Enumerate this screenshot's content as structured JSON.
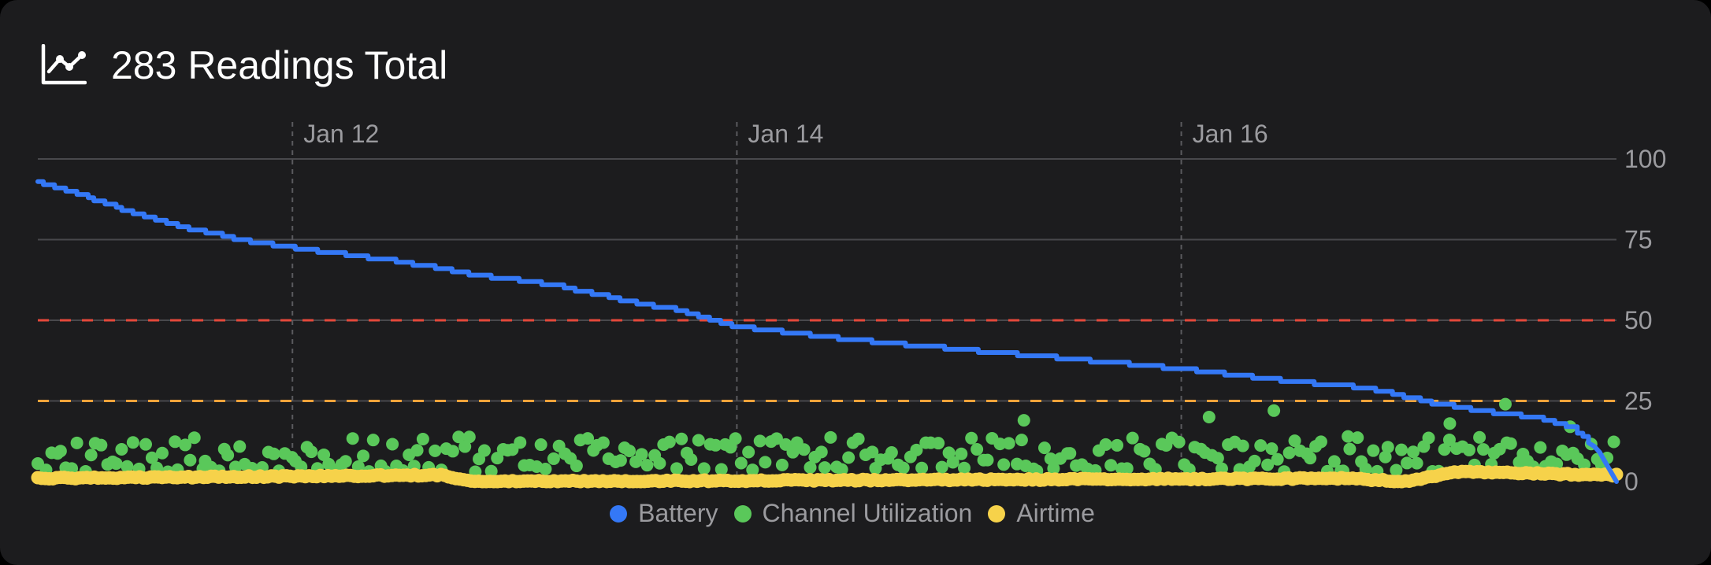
{
  "header": {
    "title": "283 Readings Total",
    "icon": "line-chart-icon"
  },
  "legend": [
    {
      "label": "Battery",
      "color": "#3478f6"
    },
    {
      "label": "Channel Utilization",
      "color": "#5ac85a"
    },
    {
      "label": "Airtime",
      "color": "#f6d24a"
    }
  ],
  "chart_data": {
    "type": "line",
    "x_axis": {
      "tick_labels": [
        "Jan 12",
        "Jan 14",
        "Jan 16"
      ],
      "range": [
        "Jan 10 20:30",
        "Jan 17 23:00"
      ]
    },
    "y_axis": {
      "position": "right",
      "range": [
        0,
        100
      ],
      "ticks": [
        0,
        25,
        50,
        75,
        100
      ]
    },
    "grid": true,
    "legend_position": "bottom-center",
    "thresholds": [
      {
        "value": 50,
        "color": "#e5483b",
        "style": "dashed"
      },
      {
        "value": 25,
        "color": "#f0a33a",
        "style": "dashed"
      }
    ],
    "series": [
      {
        "name": "Battery",
        "type": "line",
        "color": "#3478f6",
        "points": [
          [
            "Jan 10 20:30",
            93
          ],
          [
            "Jan 11 00:00",
            90
          ],
          [
            "Jan 11 06:00",
            84
          ],
          [
            "Jan 11 12:00",
            79
          ],
          [
            "Jan 11 20:00",
            74
          ],
          [
            "Jan 12 04:00",
            71
          ],
          [
            "Jan 12 12:00",
            68
          ],
          [
            "Jan 12 20:00",
            64
          ],
          [
            "Jan 13 04:00",
            61
          ],
          [
            "Jan 13 12:00",
            56
          ],
          [
            "Jan 13 18:00",
            53
          ],
          [
            "Jan 14 00:00",
            48
          ],
          [
            "Jan 14 06:00",
            46
          ],
          [
            "Jan 14 12:00",
            44
          ],
          [
            "Jan 15 00:00",
            41
          ],
          [
            "Jan 15 12:00",
            38
          ],
          [
            "Jan 16 00:00",
            35
          ],
          [
            "Jan 16 12:00",
            31
          ],
          [
            "Jan 16 20:00",
            29
          ],
          [
            "Jan 17 02:00",
            25
          ],
          [
            "Jan 17 08:00",
            22
          ],
          [
            "Jan 17 14:00",
            20
          ],
          [
            "Jan 17 18:00",
            17
          ],
          [
            "Jan 17 21:00",
            10
          ],
          [
            "Jan 17 23:00",
            0
          ]
        ]
      },
      {
        "name": "Channel Utilization",
        "type": "scatter",
        "color": "#5ac85a",
        "typical_range": [
          3,
          14
        ],
        "notable_points": [
          [
            "Jan 15 07:00",
            19
          ],
          [
            "Jan 16 03:00",
            20
          ],
          [
            "Jan 16 10:00",
            22
          ],
          [
            "Jan 16 18:00",
            14
          ],
          [
            "Jan 17 05:00",
            18
          ],
          [
            "Jan 17 11:00",
            24
          ],
          [
            "Jan 17 18:00",
            17
          ]
        ]
      },
      {
        "name": "Airtime",
        "type": "scatter",
        "color": "#f6d24a",
        "typical_range": [
          0,
          3
        ],
        "notable_points": [
          [
            "Jan 10 20:30",
            1
          ],
          [
            "Jan 12 16:00",
            2
          ],
          [
            "Jan 12 20:00",
            0
          ],
          [
            "Jan 16 18:00",
            1
          ],
          [
            "Jan 17 00:00",
            0
          ],
          [
            "Jan 17 06:00",
            3
          ],
          [
            "Jan 17 23:00",
            2
          ]
        ]
      }
    ]
  }
}
